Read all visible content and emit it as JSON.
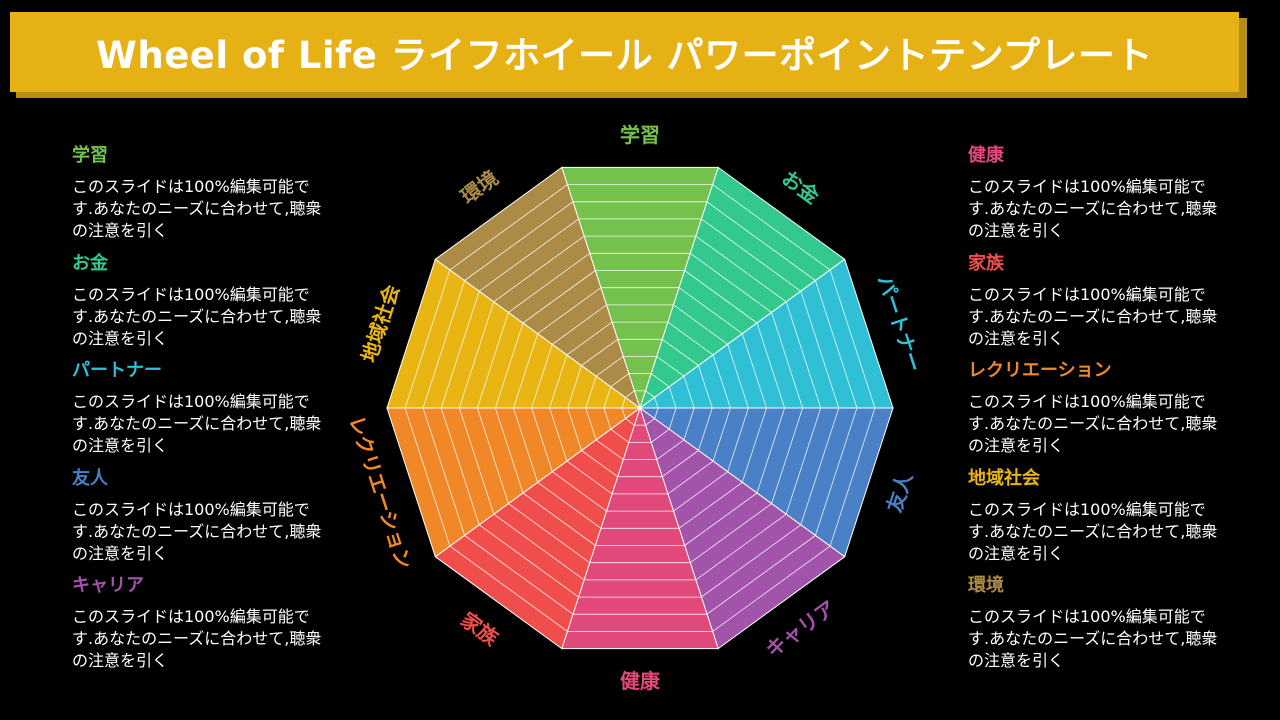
{
  "title": "Wheel of Life ライフホイール パワーポイントテンプレート",
  "description": "このスライドは100%編集可能です.あなたのニーズに合わせて,聴衆の注意を引く",
  "segments": [
    {
      "label": "学習",
      "color": "#75c14d"
    },
    {
      "label": "お金",
      "color": "#33c98e"
    },
    {
      "label": "パートナー",
      "color": "#2fc0d6"
    },
    {
      "label": "友人",
      "color": "#4a80c6"
    },
    {
      "label": "キャリア",
      "color": "#a154a9"
    },
    {
      "label": "健康",
      "color": "#e2497b"
    },
    {
      "label": "家族",
      "color": "#f04e4c"
    },
    {
      "label": "レクリエーション",
      "color": "#f08827"
    },
    {
      "label": "地域社会",
      "color": "#e9b512"
    },
    {
      "label": "環境",
      "color": "#ab8b46"
    }
  ],
  "left_panel": [
    {
      "heading": "学習",
      "text": "このスライドは100%編集可能です.あなたのニーズに合わせて,聴衆の注意を引く",
      "color": "#75c14d"
    },
    {
      "heading": "お金",
      "text": "このスライドは100%編集可能です.あなたのニーズに合わせて,聴衆の注意を引く",
      "color": "#33c98e"
    },
    {
      "heading": "パートナー",
      "text": "このスライドは100%編集可能です.あなたのニーズに合わせて,聴衆の注意を引く",
      "color": "#2fc0d6"
    },
    {
      "heading": "友人",
      "text": "このスライドは100%編集可能です.あなたのニーズに合わせて,聴衆の注意を引く",
      "color": "#4a80c6"
    },
    {
      "heading": "キャリア",
      "text": "このスライドは100%編集可能です.あなたのニーズに合わせて,聴衆の注意を引く",
      "color": "#a154a9"
    }
  ],
  "right_panel": [
    {
      "heading": "健康",
      "text": "このスライドは100%編集可能です.あなたのニーズに合わせて,聴衆の注意を引く",
      "color": "#e2497b"
    },
    {
      "heading": "家族",
      "text": "このスライドは100%編集可能です.あなたのニーズに合わせて,聴衆の注意を引く",
      "color": "#f04e4c"
    },
    {
      "heading": "レクリエーション",
      "text": "このスライドは100%編集可能です.あなたのニーズに合わせて,聴衆の注意を引く",
      "color": "#f08827"
    },
    {
      "heading": "地域社会",
      "text": "このスライドは100%編集可能です.あなたのニーズに合わせて,聴衆の注意を引く",
      "color": "#e9b512"
    },
    {
      "heading": "環境",
      "text": "このスライドは100%編集可能です.あなたのニーズに合わせて,聴衆の注意を引く",
      "color": "#ab8b46"
    }
  ]
}
